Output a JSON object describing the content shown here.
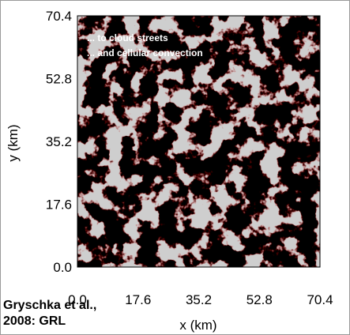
{
  "chart_data": {
    "type": "heatmap",
    "title": "",
    "xlabel": "x (km)",
    "ylabel": "y (km)",
    "xlim": [
      0.0,
      70.4
    ],
    "ylim": [
      0.0,
      70.4
    ],
    "x_ticks": [
      "0.0",
      "17.6",
      "35.2",
      "52.8",
      "70.4"
    ],
    "y_ticks": [
      "0.0",
      "17.6",
      "35.2",
      "52.8",
      "70.4"
    ],
    "annotation_lines": [
      "... to cloud streets",
      "... and cellular convection"
    ],
    "colors": {
      "background": "#000000",
      "cloud_edge": "#ff0000",
      "cloud_core": "#9a9a9a"
    }
  },
  "credit": {
    "line1": "Gryschka et al.,",
    "line2": "2008: GRL"
  }
}
